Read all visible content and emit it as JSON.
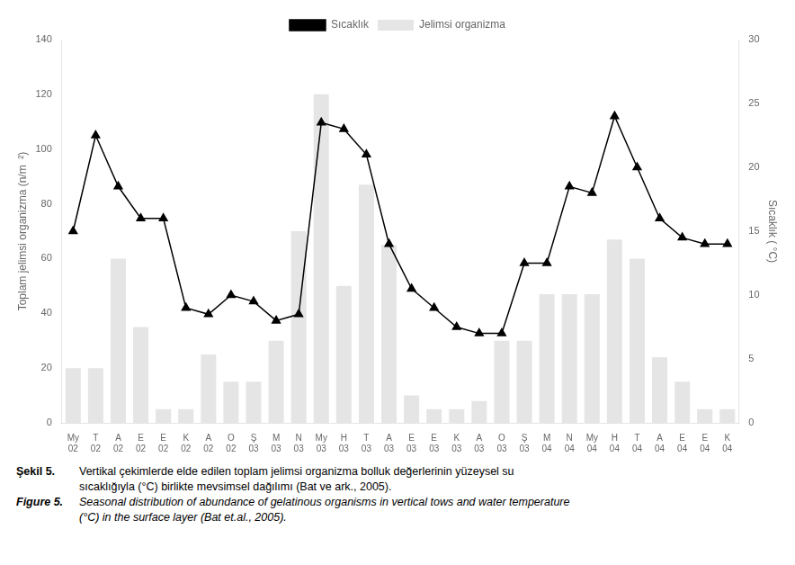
{
  "chart_data": {
    "type": "bar",
    "categories": [
      "My\n02",
      "T\n02",
      "A\n02",
      "E\n02",
      "E\n02",
      "K\n02",
      "A\n02",
      "O\n02",
      "Ş\n03",
      "M\n03",
      "N\n03",
      "My\n03",
      "H\n03",
      "T\n03",
      "A\n03",
      "E\n03",
      "E\n03",
      "K\n03",
      "A\n03",
      "O\n03",
      "Ş\n03",
      "M\n04",
      "N\n04",
      "My\n04",
      "H\n04",
      "T\n04",
      "A\n04",
      "E\n04",
      "E\n04",
      "K\n04"
    ],
    "series": [
      {
        "name": "Jelimsi organizma",
        "type": "bar",
        "values": [
          20,
          20,
          60,
          35,
          5,
          5,
          25,
          15,
          15,
          30,
          70,
          120,
          50,
          87,
          65,
          10,
          5,
          5,
          8,
          30,
          30,
          47,
          47,
          47,
          67,
          60,
          24,
          15,
          5,
          5
        ]
      },
      {
        "name": "Sıcaklık",
        "type": "line",
        "axis": "y2",
        "color": "#000000",
        "marker": "triangle",
        "values": [
          15,
          22.5,
          18.5,
          16,
          16,
          9,
          8.5,
          10,
          9.5,
          8,
          8.5,
          23.5,
          23.0,
          21,
          14,
          10.5,
          9,
          7.5,
          7,
          7,
          12.5,
          12.5,
          18.5,
          18,
          24,
          20,
          16,
          14.5,
          14,
          14
        ]
      }
    ],
    "ylabel": "Toplam jelimsi organizma (n/m  ²)",
    "y2label": "Sıcaklık ( °C)",
    "ylim": [
      0,
      140
    ],
    "yticks": [
      0,
      20,
      40,
      60,
      80,
      100,
      120,
      140
    ],
    "y2lim": [
      0,
      30
    ],
    "y2ticks": [
      0,
      5,
      10,
      15,
      20,
      25,
      30
    ],
    "grid": false,
    "legend": "top",
    "annotations": [
      "Şekil 5.",
      "Vertikal çekimlerde elde edilen toplam jelimsi organizma bolluk değerlerinin yüzeysel su",
      "sıcaklığıyla (°C) birlikte mevsimsel dağılımı (Bat ve ark., 2005).",
      "Figure 5.",
      "Seasonal distribution of abundance of gelatinous organisms in vertical tows and water temperature",
      "(°C) in the surface layer (Bat et.al., 2005)."
    ]
  }
}
